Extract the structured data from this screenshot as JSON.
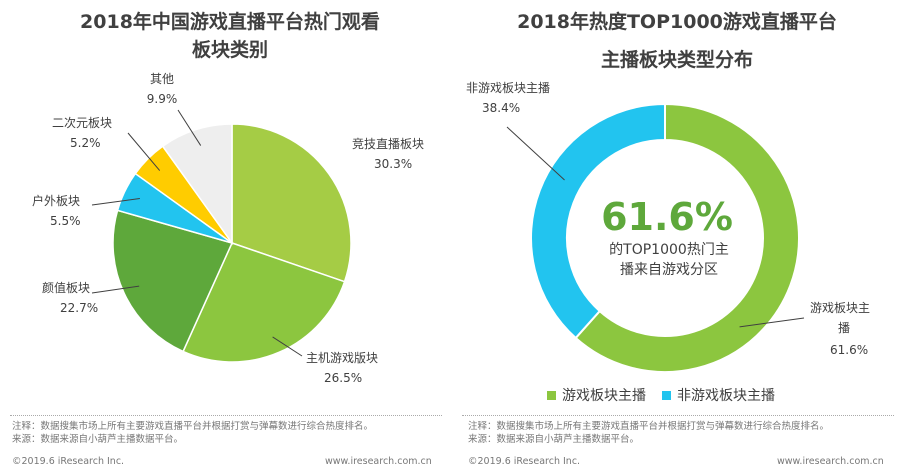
{
  "left": {
    "title_line1": "2018年中国游戏直播平台热门观看",
    "title_line2": "板块类别",
    "footnote1": "注释：数据搜集市场上所有主要游戏直播平台并根据打赏与弹幕数进行综合热度排名。",
    "footnote2": "来源：数据来源自小葫芦主播数据平台。",
    "copyright": "©2019.6 iResearch Inc.",
    "url": "www.iresearch.com.cn"
  },
  "right": {
    "title_line1": "2018年热度TOP1000游戏直播平台",
    "title_line2": "主播板块类型分布",
    "center_value": "61.6%",
    "center_line1": "的TOP1000热门主",
    "center_line2": "播来自游戏分区",
    "footnote1": "注释：数据搜集市场上所有主要游戏直播平台并根据打赏与弹幕数进行综合热度排名。",
    "footnote2": "来源：数据来源自小葫芦主播数据平台。",
    "copyright": "©2019.6 iResearch Inc.",
    "url": "www.iresearch.com.cn"
  },
  "chart_data": [
    {
      "type": "pie",
      "title": "2018年中国游戏直播平台热门观看板块类别",
      "categories": [
        "竞技直播板块",
        "主机游戏版块",
        "颜值板块",
        "户外板块",
        "二次元板块",
        "其他"
      ],
      "values": [
        30.3,
        26.5,
        22.7,
        5.5,
        5.2,
        9.9
      ],
      "value_labels": [
        "30.3%",
        "26.5%",
        "22.7%",
        "5.5%",
        "5.2%",
        "9.9%"
      ],
      "colors": [
        "#a5cc45",
        "#8cc63f",
        "#5ea83b",
        "#22c4ef",
        "#ffcc00",
        "#eeeeee"
      ]
    },
    {
      "type": "pie",
      "subtype": "donut",
      "title": "2018年热度TOP1000游戏直播平台主播板块类型分布",
      "categories": [
        "游戏板块主播",
        "非游戏板块主播"
      ],
      "slice_labels": [
        "游戏板块主\n播",
        "非游戏板块主播"
      ],
      "values": [
        61.6,
        38.4
      ],
      "value_labels": [
        "61.6%",
        "38.4%"
      ],
      "legend": [
        "游戏板块主播",
        "非游戏板块主播"
      ],
      "legend_position": "bottom",
      "colors": [
        "#8cc63f",
        "#22c4ef"
      ]
    }
  ]
}
